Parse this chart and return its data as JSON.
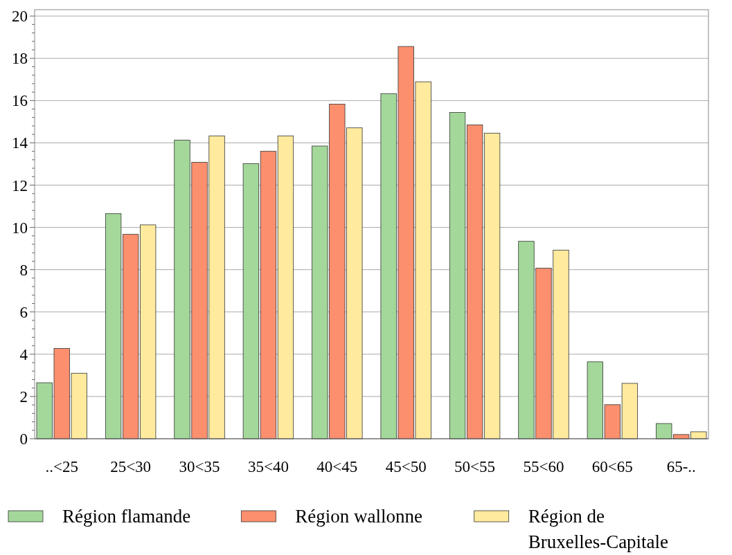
{
  "chart_data": {
    "type": "bar",
    "categories": [
      "..<25",
      "25<30",
      "30<35",
      "35<40",
      "40<45",
      "45<50",
      "50<55",
      "55<60",
      "60<65",
      "65-.."
    ],
    "series": [
      {
        "name": "Région flamande",
        "color": "#a3d89a",
        "values": [
          2.65,
          10.65,
          14.13,
          13.02,
          13.85,
          16.33,
          15.44,
          9.34,
          3.64,
          0.72
        ]
      },
      {
        "name": "Région wallonne",
        "color": "#fc8f6e",
        "values": [
          4.27,
          9.67,
          13.08,
          13.6,
          15.83,
          18.56,
          14.85,
          8.07,
          1.61,
          0.2
        ]
      },
      {
        "name": "Région de Bruxelles-Capitale",
        "color": "#ffea9e",
        "values": [
          3.1,
          10.12,
          14.33,
          14.33,
          14.71,
          16.89,
          14.46,
          8.92,
          2.62,
          0.33
        ]
      }
    ],
    "ylim": [
      0,
      20.3
    ],
    "yticks": [
      0,
      {
        "value": 0.4,
        "label": null
      },
      {
        "value": 0.8,
        "label": null
      },
      {
        "value": 1.2,
        "label": null
      },
      {
        "value": 1.6,
        "label": null
      },
      2,
      {
        "value": 2.4,
        "label": null
      },
      {
        "value": 2.8,
        "label": null
      },
      {
        "value": 3.2,
        "label": null
      },
      {
        "value": 3.6,
        "label": null
      },
      4,
      {
        "value": 4.4,
        "label": null
      },
      {
        "value": 4.8,
        "label": null
      },
      {
        "value": 5.2,
        "label": null
      },
      {
        "value": 5.6,
        "label": null
      },
      6,
      {
        "value": 6.4,
        "label": null
      },
      {
        "value": 6.8,
        "label": null
      },
      {
        "value": 7.2,
        "label": null
      },
      {
        "value": 7.6,
        "label": null
      },
      8,
      {
        "value": 8.4,
        "label": null
      },
      {
        "value": 8.8,
        "label": null
      },
      {
        "value": 9.2,
        "label": null
      },
      {
        "value": 9.6,
        "label": null
      },
      10,
      {
        "value": 10.4,
        "label": null
      },
      {
        "value": 10.8,
        "label": null
      },
      {
        "value": 11.2,
        "label": null
      },
      {
        "value": 11.6,
        "label": null
      },
      12,
      {
        "value": 12.4,
        "label": null
      },
      {
        "value": 12.8,
        "label": null
      },
      {
        "value": 13.2,
        "label": null
      },
      {
        "value": 13.6,
        "label": null
      },
      14,
      {
        "value": 14.4,
        "label": null
      },
      {
        "value": 14.8,
        "label": null
      },
      {
        "value": 15.2,
        "label": null
      },
      {
        "value": 15.6,
        "label": null
      },
      16,
      {
        "value": 16.4,
        "label": null
      },
      {
        "value": 16.8,
        "label": null
      },
      {
        "value": 17.2,
        "label": null
      },
      {
        "value": 17.6,
        "label": null
      },
      18,
      {
        "value": 18.4,
        "label": null
      },
      {
        "value": 18.8,
        "label": null
      },
      {
        "value": 19.2,
        "label": null
      },
      {
        "value": 19.6,
        "label": null
      },
      20
    ],
    "grid": "y",
    "legend": "bottom"
  }
}
